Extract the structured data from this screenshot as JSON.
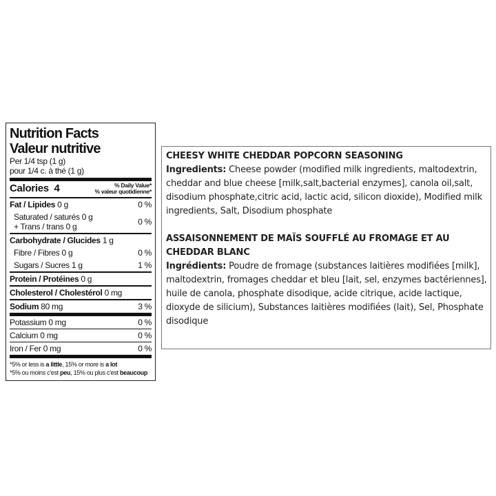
{
  "nutrition": {
    "title_en": "Nutrition Facts",
    "title_fr": "Valeur nutritive",
    "serving_en": "Per 1/4 tsp (1 g)",
    "serving_fr": "pour 1/4 c. à thé (1 g)",
    "calories_label": "Calories",
    "calories_value": "4",
    "dv_header_en": "% Daily Value*",
    "dv_header_fr": "% valeur quotidienne*",
    "fat": {
      "label": "Fat / Lipides",
      "amount": "0 g",
      "dv": "0 %"
    },
    "saturated": {
      "label": "Saturated / saturés",
      "amount": "0 g"
    },
    "trans": {
      "label": "+ Trans / trans",
      "amount": "0 g",
      "dv": "0 %"
    },
    "carbohydrate": {
      "label": "Carbohydrate / Glucides",
      "amount": "1 g"
    },
    "fibre": {
      "label": "Fibre / Fibres",
      "amount": "0 g",
      "dv": "0 %"
    },
    "sugars": {
      "label": "Sugars / Sucres",
      "amount": "1 g",
      "dv": "1 %"
    },
    "protein": {
      "label": "Protein / Protéines",
      "amount": "0 g"
    },
    "cholesterol": {
      "label": "Cholesterol / Cholestérol",
      "amount": "0 mg"
    },
    "sodium": {
      "label": "Sodium",
      "amount": "80 mg",
      "dv": "3 %"
    },
    "potassium": {
      "label": "Potassium",
      "amount": "0 mg",
      "dv": "0 %"
    },
    "calcium": {
      "label": "Calcium",
      "amount": "0 mg",
      "dv": "0 %"
    },
    "iron": {
      "label": "Iron / Fer",
      "amount": "0 mg",
      "dv": "0 %"
    },
    "footnote_en": [
      "*5% or less is",
      "a little",
      ", 15% or more is",
      "a lot"
    ],
    "footnote_fr": [
      "*5% ou moins c'est",
      "peu",
      ", 15% ou plus c'est",
      "beaucoup"
    ]
  },
  "ingredients": {
    "en": {
      "title": "CHEESY WHITE CHEDDAR POPCORN SEASONING",
      "label": "Ingredients:",
      "text": "Cheese powder (modified milk ingredients, maltodextrin, cheddar and blue cheese [milk,salt,bacterial enzymes], canola oil,salt, disodium phosphate,citric acid, lactic acid, silicon dioxide), Modified milk ingredients, Salt, Disodium phosphate"
    },
    "fr": {
      "title": "ASSAISONNEMENT DE MAÏS SOUFFLÉ AU FROMAGE ET AU CHEDDAR BLANC",
      "label": "Ingrédients:",
      "text": "Poudre de fromage (substances laitières modifiées [milk], maltodextrin, fromages cheddar et bleu [lait, sel, enzymes bactériennes], huile de canola, phosphate disodique, acide citrique, acide lactique, dioxyde de silicium), Substances laitières modifiées (lait), Sel, Phosphate disodique"
    }
  }
}
